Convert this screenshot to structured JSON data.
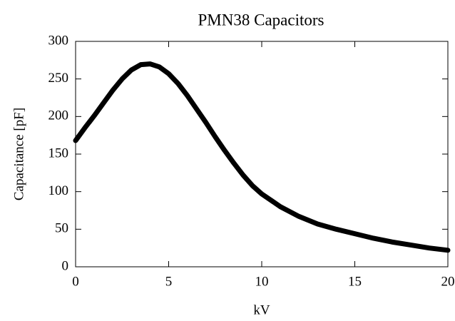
{
  "chart_data": {
    "type": "line",
    "title": "PMN38 Capacitors",
    "x_label": "kV",
    "y_label": "Capacitance [pF]",
    "x": [
      0,
      0.5,
      1,
      1.5,
      2,
      2.5,
      3,
      3.5,
      4,
      4.5,
      5,
      5.5,
      6,
      6.5,
      7,
      7.5,
      8,
      8.5,
      9,
      9.5,
      10,
      11,
      12,
      13,
      14,
      15,
      16,
      17,
      18,
      19,
      20
    ],
    "series": [
      {
        "color": "#000000",
        "values": [
          168,
          185,
          201,
          218,
          235,
          250,
          262,
          269,
          270,
          266,
          257,
          244,
          228,
          210,
          192,
          173,
          155,
          138,
          122,
          108,
          97,
          80,
          67,
          57,
          50,
          44,
          38,
          33,
          29,
          25,
          22
        ]
      }
    ],
    "xlim": [
      0,
      20
    ],
    "ylim": [
      0,
      300
    ],
    "xticks": [
      0,
      5,
      10,
      15,
      20
    ],
    "yticks": [
      0,
      50,
      100,
      150,
      200,
      250,
      300
    ],
    "grid": false
  }
}
